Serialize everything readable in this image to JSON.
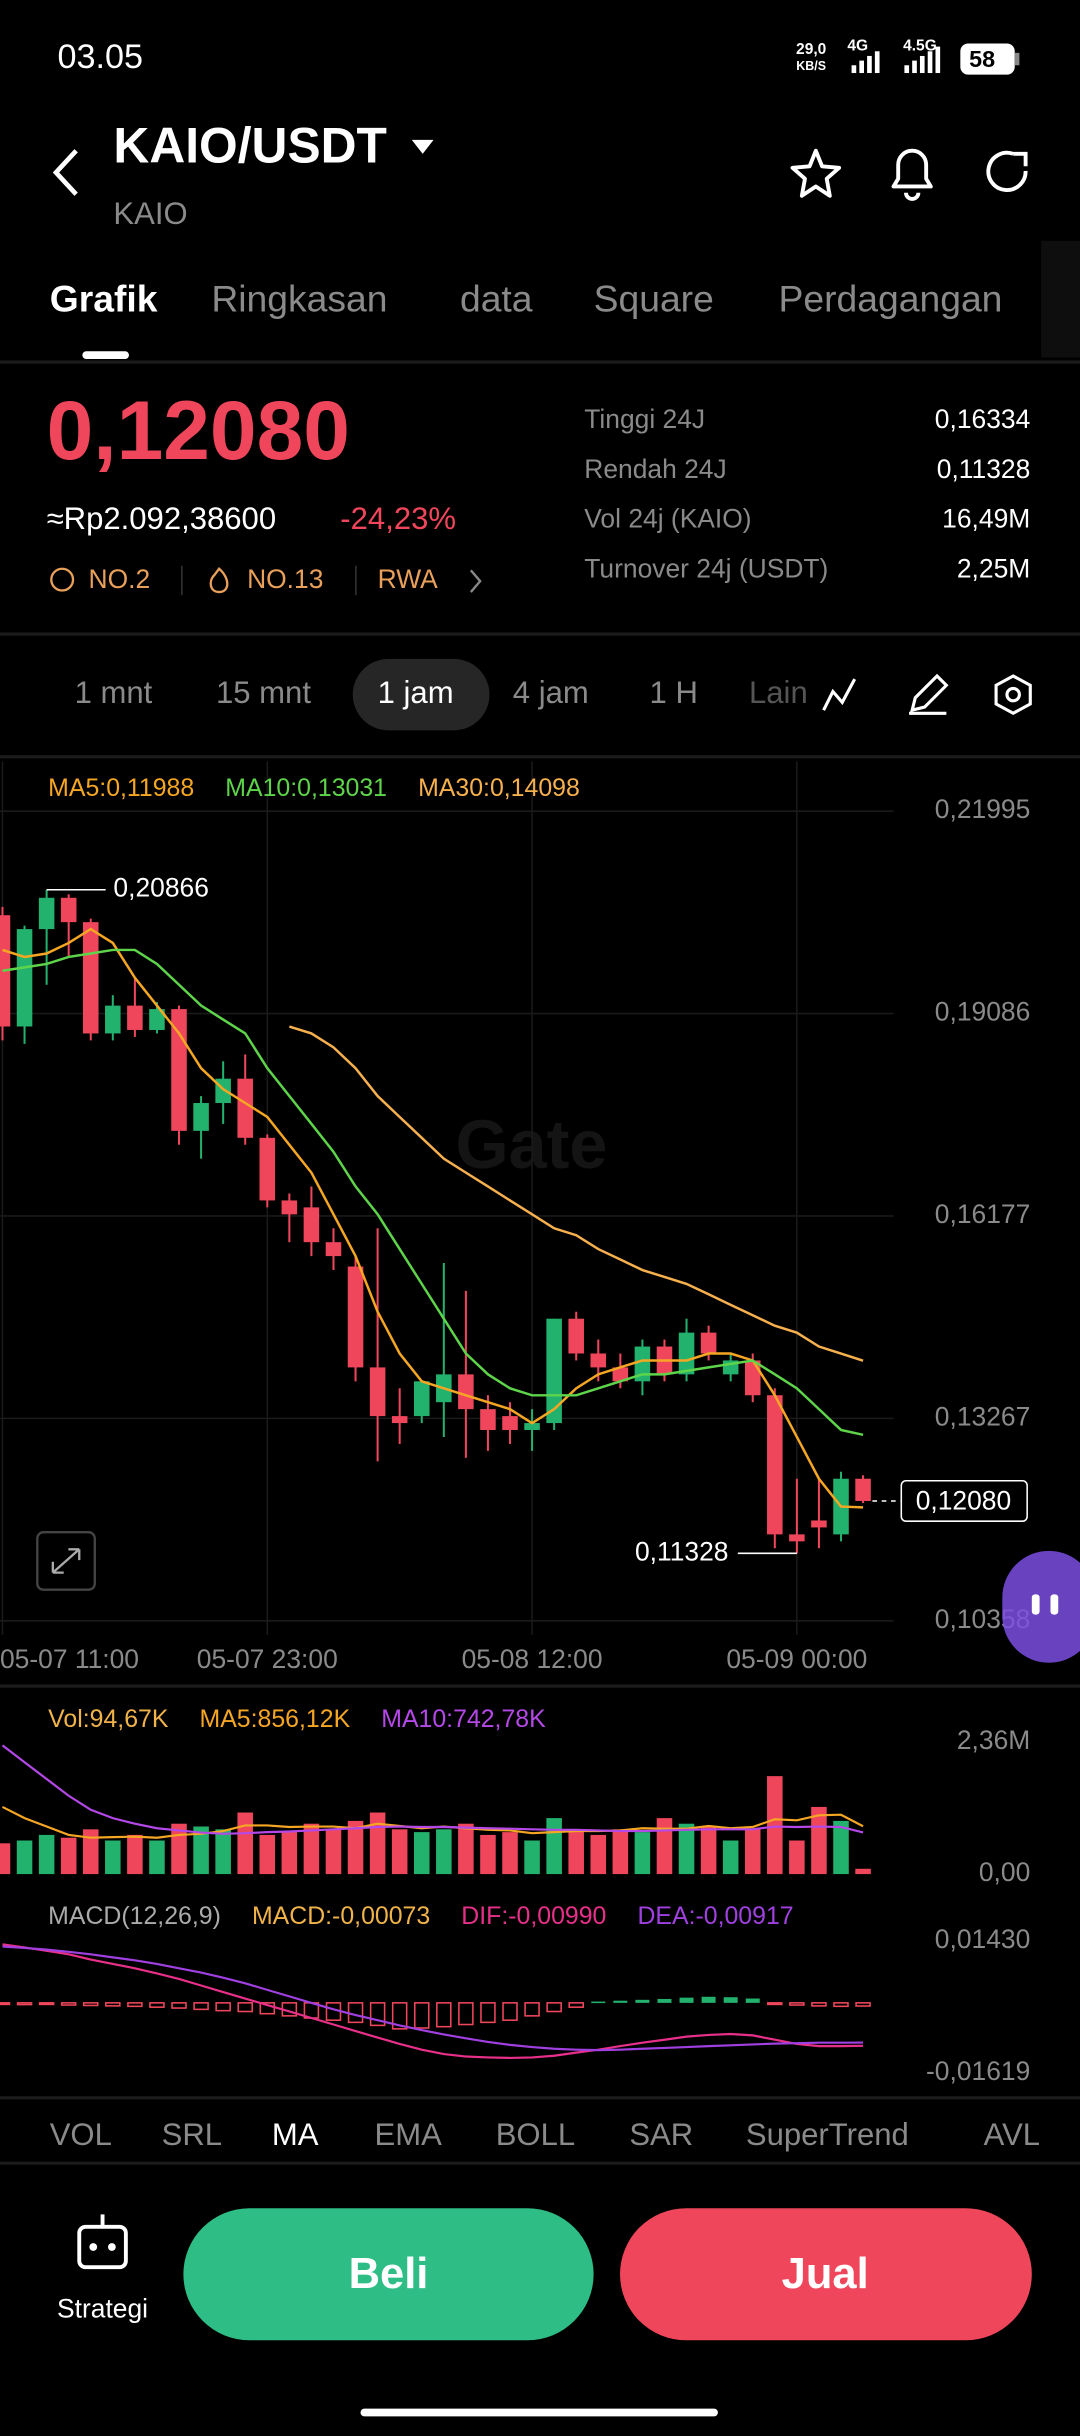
{
  "status_bar": {
    "time": "03.05",
    "speed": "29,0",
    "speed_unit": "KB/S",
    "net1": "4G",
    "net2": "4.5G",
    "battery": "58"
  },
  "header": {
    "pair": "KAIO/USDT",
    "base": "KAIO"
  },
  "tabs": [
    "Grafik",
    "Ringkasan",
    "data",
    "Square",
    "Perdagangan"
  ],
  "ticker": {
    "price": "0,12080",
    "fiat": "≈Rp2.092,38600",
    "change": "-24,23%",
    "badges": [
      "NO.2",
      "NO.13",
      "RWA"
    ],
    "stats": [
      {
        "label": "Tinggi 24J",
        "value": "0,16334"
      },
      {
        "label": "Rendah 24J",
        "value": "0,11328"
      },
      {
        "label": "Vol 24j (KAIO)",
        "value": "16,49M"
      },
      {
        "label": "Turnover 24j (USDT)",
        "value": "2,25M"
      }
    ]
  },
  "intervals": [
    "1 mnt",
    "15 mnt",
    "1 jam",
    "4 jam",
    "1 H",
    "Lain"
  ],
  "watermark": "Gate",
  "chart_data": {
    "type": "candlestick",
    "up_color": "#23b26d",
    "down_color": "#f0465c",
    "categories": [
      "05-07 11:00",
      null,
      null,
      null,
      null,
      null,
      null,
      null,
      null,
      null,
      null,
      null,
      "05-07 23:00",
      null,
      null,
      null,
      null,
      null,
      null,
      null,
      null,
      null,
      null,
      null,
      "05-08 12:00",
      null,
      null,
      null,
      null,
      null,
      null,
      null,
      null,
      null,
      null,
      null,
      "05-09 00:00",
      null,
      null,
      null
    ],
    "open": [
      0.205,
      0.189,
      0.203,
      0.2075,
      0.204,
      0.188,
      0.192,
      0.1885,
      0.1915,
      0.174,
      0.178,
      0.1815,
      0.173,
      0.164,
      0.163,
      0.158,
      0.1545,
      0.14,
      0.133,
      0.133,
      0.135,
      0.139,
      0.134,
      0.133,
      0.131,
      0.132,
      0.147,
      0.142,
      0.14,
      0.138,
      0.143,
      0.139,
      0.145,
      0.139,
      0.141,
      0.136,
      0.116,
      0.118,
      0.116,
      0.124
    ],
    "high": [
      0.2062,
      0.2035,
      0.20866,
      0.208,
      0.2045,
      0.1935,
      0.196,
      0.1925,
      0.192,
      0.179,
      0.184,
      0.185,
      0.1735,
      0.165,
      0.166,
      0.16,
      0.156,
      0.16,
      0.137,
      0.138,
      0.155,
      0.151,
      0.136,
      0.135,
      0.134,
      0.147,
      0.148,
      0.144,
      0.142,
      0.144,
      0.144,
      0.147,
      0.146,
      0.142,
      0.142,
      0.137,
      0.124,
      0.124,
      0.125,
      0.1245
    ],
    "low": [
      0.187,
      0.1865,
      0.195,
      0.199,
      0.187,
      0.187,
      0.1875,
      0.188,
      0.172,
      0.17,
      0.175,
      0.172,
      0.163,
      0.158,
      0.156,
      0.154,
      0.138,
      0.1265,
      0.129,
      0.132,
      0.13,
      0.127,
      0.128,
      0.129,
      0.128,
      0.131,
      0.141,
      0.138,
      0.137,
      0.136,
      0.138,
      0.138,
      0.141,
      0.138,
      0.135,
      0.114,
      0.11328,
      0.114,
      0.115,
      0.1205
    ],
    "close": [
      0.189,
      0.203,
      0.2075,
      0.204,
      0.188,
      0.192,
      0.1885,
      0.1915,
      0.174,
      0.178,
      0.1815,
      0.173,
      0.164,
      0.162,
      0.158,
      0.156,
      0.14,
      0.133,
      0.132,
      0.138,
      0.139,
      0.134,
      0.131,
      0.131,
      0.132,
      0.147,
      0.142,
      0.14,
      0.138,
      0.143,
      0.139,
      0.145,
      0.142,
      0.141,
      0.136,
      0.116,
      0.115,
      0.117,
      0.124,
      0.1208
    ],
    "series": [
      {
        "name": "MA5:0,11988",
        "color": "#f5a623",
        "values": [
          0.2,
          0.199,
          0.1995,
          0.201,
          0.203,
          0.201,
          0.196,
          0.192,
          0.188,
          0.183,
          0.18,
          0.178,
          0.176,
          0.172,
          0.168,
          0.162,
          0.156,
          0.148,
          0.142,
          0.138,
          0.137,
          0.136,
          0.135,
          0.134,
          0.132,
          0.134,
          0.137,
          0.139,
          0.14,
          0.141,
          0.141,
          0.141,
          0.142,
          0.142,
          0.141,
          0.136,
          0.13,
          0.124,
          0.12,
          0.11988
        ]
      },
      {
        "name": "MA10:0,13031",
        "color": "#5ed44a",
        "values": [
          0.197,
          0.1975,
          0.198,
          0.199,
          0.1995,
          0.2,
          0.2,
          0.198,
          0.195,
          0.192,
          0.19,
          0.188,
          0.183,
          0.179,
          0.175,
          0.171,
          0.166,
          0.162,
          0.157,
          0.152,
          0.147,
          0.142,
          0.139,
          0.137,
          0.136,
          0.136,
          0.136,
          0.137,
          0.138,
          0.139,
          0.139,
          0.1395,
          0.14,
          0.1405,
          0.141,
          0.139,
          0.137,
          0.134,
          0.131,
          0.13031
        ]
      },
      {
        "name": "MA30:0,14098",
        "color": "#f7b04e",
        "values": [
          null,
          null,
          null,
          null,
          null,
          null,
          null,
          null,
          null,
          null,
          null,
          null,
          null,
          0.189,
          0.188,
          0.186,
          0.183,
          0.179,
          0.176,
          0.173,
          0.17,
          0.168,
          0.166,
          0.164,
          0.162,
          0.16,
          0.159,
          0.157,
          0.1555,
          0.154,
          0.153,
          0.152,
          0.1505,
          0.149,
          0.1475,
          0.146,
          0.145,
          0.143,
          0.142,
          0.14098
        ]
      }
    ],
    "ylim": [
      0.10358,
      0.21995
    ],
    "yticks": [
      {
        "value": 0.21995,
        "label": "0,21995"
      },
      {
        "value": 0.19086,
        "label": "0,19086"
      },
      {
        "value": 0.16177,
        "label": "0,16177"
      },
      {
        "value": 0.13267,
        "label": "0,13267"
      },
      {
        "value": 0.10358,
        "label": "0,10358"
      }
    ],
    "high_label": "0,20866",
    "low_label": "0,11328",
    "last_label": "0,12080",
    "volume": {
      "label": "Vol:94,67K",
      "label_color": "#f0b34a",
      "values": [
        550000,
        600000,
        700000,
        650000,
        800000,
        600000,
        700000,
        600000,
        900000,
        850000,
        800000,
        1100000,
        700000,
        750000,
        900000,
        800000,
        950000,
        1100000,
        800000,
        750000,
        800000,
        900000,
        700000,
        750000,
        600000,
        1000000,
        800000,
        700000,
        800000,
        750000,
        1000000,
        900000,
        850000,
        600000,
        800000,
        1750000,
        600000,
        1200000,
        950000,
        94670
      ],
      "series": [
        {
          "name": "MA5:856,12K",
          "color": "#f5a623",
          "values": [
            1200000,
            1000000,
            850000,
            700000,
            650000,
            660000,
            670000,
            650000,
            700000,
            720000,
            770000,
            870000,
            870000,
            840000,
            850000,
            850000,
            820000,
            900000,
            860000,
            820000,
            850000,
            820000,
            790000,
            780000,
            730000,
            750000,
            770000,
            770000,
            780000,
            820000,
            810000,
            810000,
            860000,
            820000,
            840000,
            980000,
            960000,
            1050000,
            1060000,
            856120
          ]
        },
        {
          "name": "MA10:742,78K",
          "color": "#b548e8",
          "values": [
            2300000,
            2000000,
            1700000,
            1400000,
            1150000,
            1000000,
            900000,
            820000,
            780000,
            740000,
            720000,
            730000,
            750000,
            760000,
            780000,
            800000,
            820000,
            840000,
            850000,
            840000,
            840000,
            830000,
            820000,
            810000,
            800000,
            790000,
            790000,
            780000,
            770000,
            770000,
            780000,
            790000,
            800000,
            800000,
            800000,
            850000,
            840000,
            850000,
            840000,
            742780
          ]
        }
      ],
      "ylim": [
        0,
        2360000
      ],
      "yticks": [
        {
          "value": 2360000,
          "label": "2,36M"
        },
        {
          "value": 0,
          "label": "0,00"
        }
      ]
    },
    "macd": {
      "label": "MACD(12,26,9)",
      "hist_label": "MACD:-0,00073",
      "hist_label_color": "#f0b34a",
      "values": [
        -0.0003,
        -0.0004,
        -0.0003,
        -0.0005,
        -0.0006,
        -0.0007,
        -0.0008,
        -0.001,
        -0.0012,
        -0.0015,
        -0.0018,
        -0.002,
        -0.0025,
        -0.003,
        -0.0035,
        -0.004,
        -0.0045,
        -0.0052,
        -0.006,
        -0.0058,
        -0.0055,
        -0.005,
        -0.0045,
        -0.004,
        -0.003,
        -0.002,
        -0.001,
        0.0003,
        0.0005,
        0.0007,
        0.0009,
        0.0012,
        0.0014,
        0.0013,
        0.001,
        -0.0002,
        -0.0005,
        -0.0007,
        -0.0008,
        -0.00073
      ],
      "series": [
        {
          "name": "DIF:-0,00990",
          "color": "#e8308a",
          "values": [
            0.0135,
            0.0128,
            0.012,
            0.0112,
            0.01,
            0.009,
            0.008,
            0.0068,
            0.0055,
            0.004,
            0.0025,
            0.001,
            -0.0005,
            -0.002,
            -0.0035,
            -0.005,
            -0.0065,
            -0.008,
            -0.0095,
            -0.0108,
            -0.0118,
            -0.0124,
            -0.0126,
            -0.0127,
            -0.0126,
            -0.0122,
            -0.0115,
            -0.0108,
            -0.01,
            -0.0092,
            -0.0085,
            -0.0078,
            -0.0074,
            -0.0072,
            -0.0075,
            -0.0085,
            -0.0095,
            -0.01,
            -0.01,
            -0.0099
          ]
        },
        {
          "name": "DEA:-0,00917",
          "color": "#a040e0",
          "values": [
            0.013,
            0.0127,
            0.0123,
            0.0118,
            0.0112,
            0.0105,
            0.0098,
            0.009,
            0.008,
            0.007,
            0.0058,
            0.0045,
            0.003,
            0.0015,
            0.0,
            -0.0015,
            -0.0028,
            -0.004,
            -0.0052,
            -0.0063,
            -0.0073,
            -0.0082,
            -0.009,
            -0.0097,
            -0.0102,
            -0.0106,
            -0.0108,
            -0.0109,
            -0.0108,
            -0.0106,
            -0.0104,
            -0.0102,
            -0.01,
            -0.0098,
            -0.0096,
            -0.0094,
            -0.0093,
            -0.0092,
            -0.0092,
            -0.00917
          ]
        }
      ],
      "ylim": [
        -0.01619,
        0.0143
      ],
      "yticks": [
        {
          "value": 0.0143,
          "label": "0,01430"
        },
        {
          "value": -0.01619,
          "label": "-0,01619"
        }
      ]
    }
  },
  "indicator_tabs": [
    "VOL",
    "SRL",
    "MA",
    "EMA",
    "BOLL",
    "SAR",
    "SuperTrend",
    "AVL"
  ],
  "actions": {
    "strategy": "Strategi",
    "buy": "Beli",
    "sell": "Jual"
  }
}
